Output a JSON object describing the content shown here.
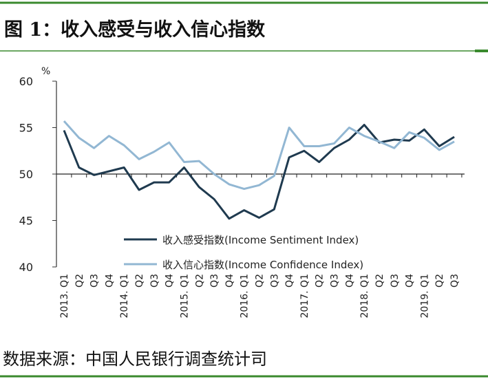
{
  "chart_data": {
    "type": "line",
    "title": "图 1：收入感受与收入信心指数",
    "y_unit": "%",
    "source": "数据来源：中国人民银行调查统计司",
    "categories": [
      "2013. Q1",
      "Q2",
      "Q3",
      "Q4",
      "2014. Q1",
      "Q2",
      "Q3",
      "Q4",
      "2015. Q1",
      "Q2",
      "Q3",
      "Q4",
      "2016. Q1",
      "Q2",
      "Q3",
      "Q4",
      "2017. Q1",
      "Q2",
      "Q3",
      "Q4",
      "2018. Q1",
      "Q2",
      "Q3",
      "Q4",
      "2019. Q1",
      "Q2",
      "Q3"
    ],
    "series": [
      {
        "name": "收入感受指数(Income Sentiment Index)",
        "color": "#1f3a4f",
        "values": [
          54.7,
          50.7,
          49.9,
          50.3,
          50.7,
          48.3,
          49.1,
          49.1,
          50.7,
          48.6,
          47.3,
          45.2,
          46.1,
          45.3,
          46.2,
          51.8,
          52.5,
          51.3,
          52.8,
          53.7,
          55.3,
          53.4,
          53.7,
          53.6,
          54.8,
          53.0,
          54.0
        ]
      },
      {
        "name": "收入信心指数(Income Confidence Index)",
        "color": "#92b7d3",
        "values": [
          55.7,
          53.9,
          52.8,
          54.1,
          53.1,
          51.6,
          52.4,
          53.4,
          51.3,
          51.4,
          50.0,
          48.9,
          48.4,
          48.8,
          49.8,
          55.0,
          53.0,
          53.0,
          53.3,
          55.0,
          54.1,
          53.5,
          52.8,
          54.5,
          53.9,
          52.6,
          53.5
        ]
      }
    ],
    "ylim": [
      40,
      60
    ],
    "yticks": [
      40,
      45,
      50,
      55,
      60
    ],
    "x_axis_crosses": 50
  }
}
